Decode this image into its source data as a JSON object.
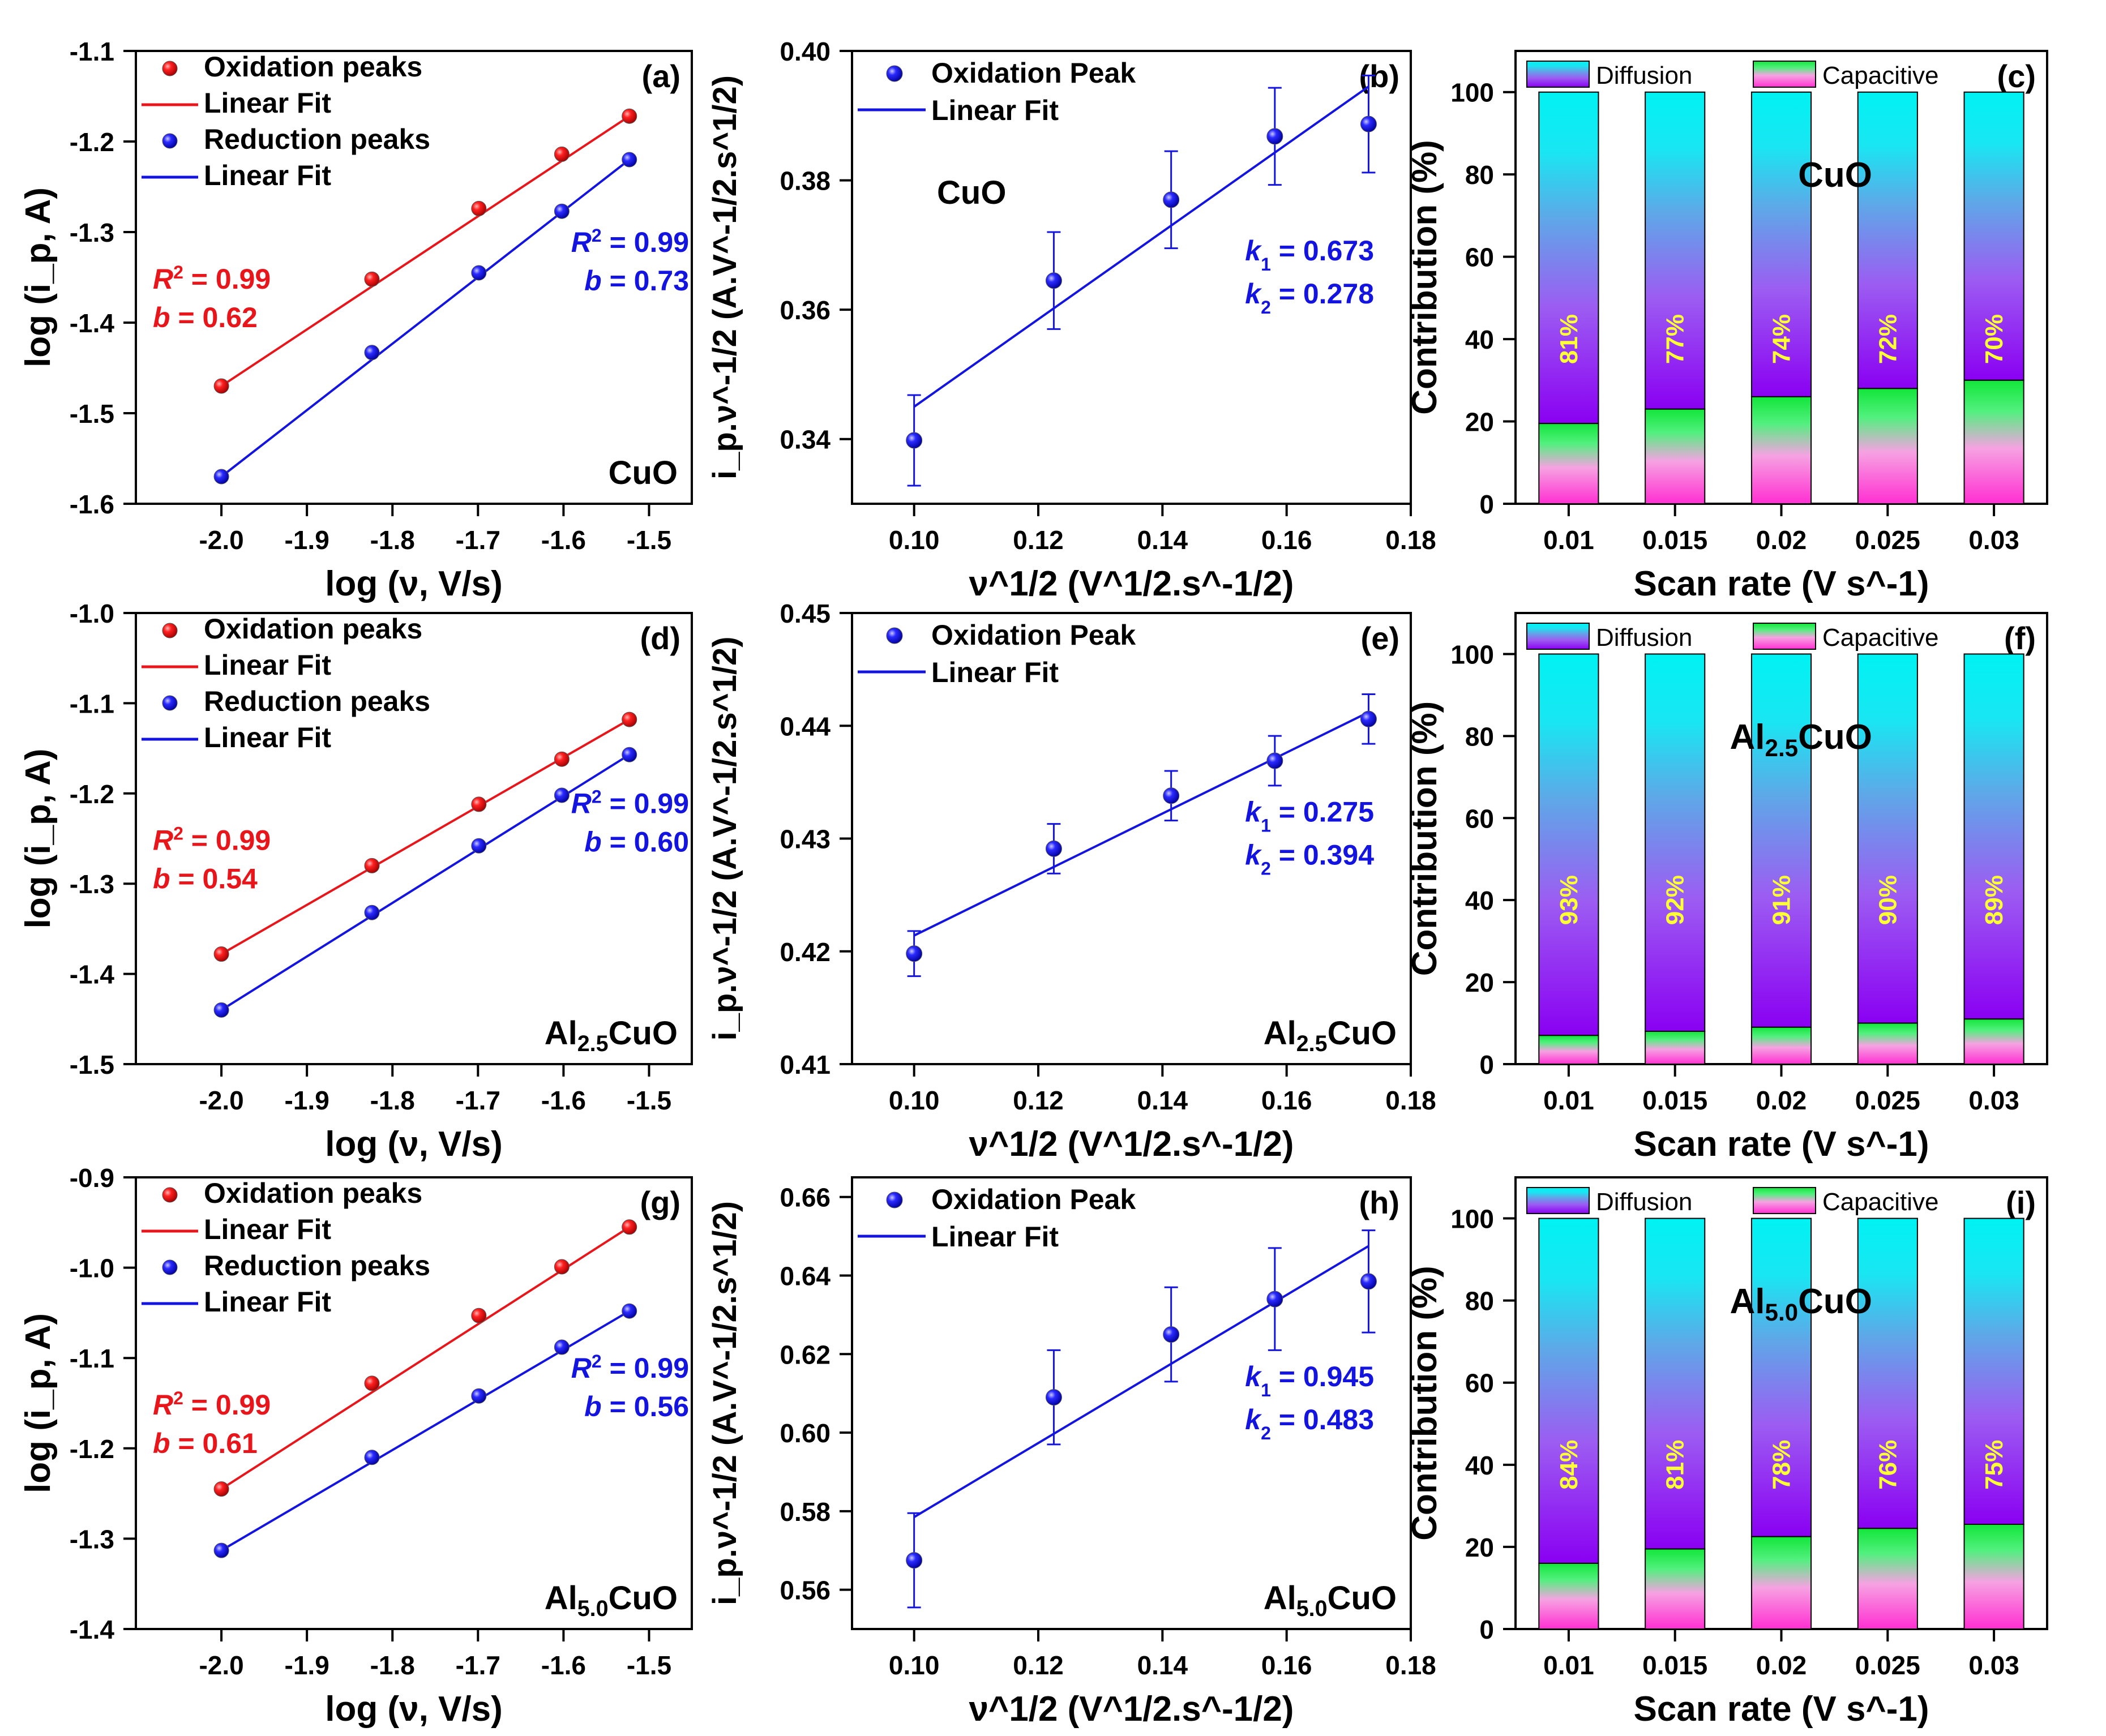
{
  "figure": {
    "rows": [
      {
        "material_main": "CuO",
        "material_sub": "",
        "material_tail": ""
      },
      {
        "material_main": "Al",
        "material_sub": "2.5",
        "material_tail": "CuO"
      },
      {
        "material_main": "Al",
        "material_sub": "5.0",
        "material_tail": "CuO"
      }
    ]
  },
  "chart_data": [
    {
      "type": "scatter",
      "panel_label": "(a)",
      "material_main": "CuO",
      "material_sub": "",
      "material_tail": "",
      "xlabel": "log (ν, V/s)",
      "ylabel": "log (i_p, A)",
      "xlim": [
        -2.1,
        -1.45
      ],
      "ylim": [
        -1.6,
        -1.1
      ],
      "xticks": [
        "-2.0",
        "-1.9",
        "-1.8",
        "-1.7",
        "-1.6",
        "-1.5"
      ],
      "xtick_values": [
        -2.0,
        -1.9,
        -1.8,
        -1.7,
        -1.6,
        -1.5
      ],
      "yticks": [
        "-1.6",
        "-1.5",
        "-1.4",
        "-1.3",
        "-1.2",
        "-1.1"
      ],
      "ytick_values": [
        -1.6,
        -1.5,
        -1.4,
        -1.3,
        -1.2,
        -1.1
      ],
      "x": [
        -2.0,
        -1.824,
        -1.699,
        -1.602,
        -1.523
      ],
      "series": [
        {
          "name": "Oxidation peaks",
          "fit_name": "Linear Fit",
          "color": "#e8161b",
          "values": [
            -1.47,
            -1.352,
            -1.274,
            -1.214,
            -1.172
          ]
        },
        {
          "name": "Reduction peaks",
          "fit_name": "Linear Fit",
          "color": "#1414e0",
          "values": [
            -1.57,
            -1.433,
            -1.345,
            -1.277,
            -1.22
          ]
        }
      ],
      "fits": [
        {
          "r2_label": "R",
          "r2_value": " = 0.99",
          "b_label": "b",
          "b_value": " = 0.62",
          "color": "#e8161b"
        },
        {
          "r2_label": "R",
          "r2_value": " = 0.99",
          "b_label": "b",
          "b_value": " = 0.73",
          "color": "#1414e0"
        }
      ]
    },
    {
      "type": "scatter",
      "panel_label": "(b)",
      "material_main": "CuO",
      "material_sub": "",
      "material_tail": "",
      "xlabel": "ν^1/2 (V^1/2.s^-1/2)",
      "ylabel": "i_p.ν^-1/2 (A.V^-1/2.s^1/2)",
      "xlim": [
        0.09,
        0.18
      ],
      "ylim": [
        0.33,
        0.4
      ],
      "xticks": [
        "0.10",
        "0.12",
        "0.14",
        "0.16",
        "0.18"
      ],
      "xtick_values": [
        0.1,
        0.12,
        0.14,
        0.16,
        0.18
      ],
      "yticks": [
        "0.34",
        "0.36",
        "0.38",
        "0.40"
      ],
      "ytick_values": [
        0.34,
        0.36,
        0.38,
        0.4
      ],
      "x": [
        0.1,
        0.1225,
        0.1414,
        0.1581,
        0.1732
      ],
      "series": [
        {
          "name": "Oxidation Peak",
          "fit_name": "Linear Fit",
          "color": "#1414e0",
          "values": [
            0.3398,
            0.3645,
            0.377,
            0.3868,
            0.3887
          ],
          "errors": [
            0.007,
            0.0075,
            0.0075,
            0.0075,
            0.0075
          ],
          "fit_line": [
            0.345,
            0.3945
          ]
        }
      ],
      "k1": "0.673",
      "k2": "0.278"
    },
    {
      "type": "bar",
      "panel_label": "(c)",
      "material_main": "CuO",
      "material_sub": "",
      "material_tail": "",
      "xlabel": "Scan rate (V s^-1)",
      "ylabel": "Contribution (%)",
      "ylim": [
        0,
        110
      ],
      "yticks": [
        "0",
        "20",
        "40",
        "60",
        "80",
        "100"
      ],
      "ytick_values": [
        0,
        20,
        40,
        60,
        80,
        100
      ],
      "categories": [
        "0.01",
        "0.015",
        "0.02",
        "0.025",
        "0.03"
      ],
      "series": [
        {
          "name": "Capacitive",
          "values": [
            19.5,
            23,
            26,
            28,
            30
          ]
        },
        {
          "name": "Diffusion",
          "values": [
            80.5,
            77,
            74,
            72,
            70
          ]
        }
      ],
      "diffusion_labels": [
        "81%",
        "77%",
        "74%",
        "72%",
        "70%"
      ],
      "legend": [
        "Diffusion",
        "Capacitive"
      ]
    },
    {
      "type": "scatter",
      "panel_label": "(d)",
      "material_main": "Al",
      "material_sub": "2.5",
      "material_tail": "CuO",
      "xlabel": "log (ν, V/s)",
      "ylabel": "log (i_p, A)",
      "xlim": [
        -2.1,
        -1.45
      ],
      "ylim": [
        -1.5,
        -1.0
      ],
      "xticks": [
        "-2.0",
        "-1.9",
        "-1.8",
        "-1.7",
        "-1.6",
        "-1.5"
      ],
      "xtick_values": [
        -2.0,
        -1.9,
        -1.8,
        -1.7,
        -1.6,
        -1.5
      ],
      "yticks": [
        "-1.5",
        "-1.4",
        "-1.3",
        "-1.2",
        "-1.1",
        "-1.0"
      ],
      "ytick_values": [
        -1.5,
        -1.4,
        -1.3,
        -1.2,
        -1.1,
        -1.0
      ],
      "x": [
        -2.0,
        -1.824,
        -1.699,
        -1.602,
        -1.523
      ],
      "series": [
        {
          "name": "Oxidation peaks",
          "fit_name": "Linear Fit",
          "color": "#e8161b",
          "values": [
            -1.378,
            -1.28,
            -1.212,
            -1.162,
            -1.118
          ]
        },
        {
          "name": "Reduction peaks",
          "fit_name": "Linear Fit",
          "color": "#1414e0",
          "values": [
            -1.44,
            -1.332,
            -1.258,
            -1.202,
            -1.157
          ]
        }
      ],
      "fits": [
        {
          "r2_label": "R",
          "r2_value": " = 0.99",
          "b_label": "b",
          "b_value": " = 0.54",
          "color": "#e8161b"
        },
        {
          "r2_label": "R",
          "r2_value": " = 0.99",
          "b_label": "b",
          "b_value": " = 0.60",
          "color": "#1414e0"
        }
      ]
    },
    {
      "type": "scatter",
      "panel_label": "(e)",
      "material_main": "Al",
      "material_sub": "2.5",
      "material_tail": "CuO",
      "xlabel": "ν^1/2 (V^1/2.s^-1/2)",
      "ylabel": "i_p.ν^-1/2 (A.V^-1/2.s^1/2)",
      "xlim": [
        0.09,
        0.18
      ],
      "ylim": [
        0.41,
        0.45
      ],
      "xticks": [
        "0.10",
        "0.12",
        "0.14",
        "0.16",
        "0.18"
      ],
      "xtick_values": [
        0.1,
        0.12,
        0.14,
        0.16,
        0.18
      ],
      "yticks": [
        "0.41",
        "0.42",
        "0.43",
        "0.44",
        "0.45"
      ],
      "ytick_values": [
        0.41,
        0.42,
        0.43,
        0.44,
        0.45
      ],
      "x": [
        0.1,
        0.1225,
        0.1414,
        0.1581,
        0.1732
      ],
      "series": [
        {
          "name": "Oxidation Peak",
          "fit_name": "Linear Fit",
          "color": "#1414e0",
          "values": [
            0.4198,
            0.4291,
            0.4338,
            0.4369,
            0.4406
          ],
          "errors": [
            0.002,
            0.0022,
            0.0022,
            0.0022,
            0.0022
          ],
          "fit_line": [
            0.4214,
            0.4412
          ]
        }
      ],
      "k1": "0.275",
      "k2": "0.394"
    },
    {
      "type": "bar",
      "panel_label": "(f)",
      "material_main": "Al",
      "material_sub": "2.5",
      "material_tail": "CuO",
      "xlabel": "Scan rate (V s^-1)",
      "ylabel": "Contribution (%)",
      "ylim": [
        0,
        110
      ],
      "yticks": [
        "0",
        "20",
        "40",
        "60",
        "80",
        "100"
      ],
      "ytick_values": [
        0,
        20,
        40,
        60,
        80,
        100
      ],
      "categories": [
        "0.01",
        "0.015",
        "0.02",
        "0.025",
        "0.03"
      ],
      "series": [
        {
          "name": "Capacitive",
          "values": [
            7,
            8,
            9,
            10,
            11
          ]
        },
        {
          "name": "Diffusion",
          "values": [
            93,
            92,
            91,
            90,
            89
          ]
        }
      ],
      "diffusion_labels": [
        "93%",
        "92%",
        "91%",
        "90%",
        "89%"
      ],
      "legend": [
        "Diffusion",
        "Capacitive"
      ]
    },
    {
      "type": "scatter",
      "panel_label": "(g)",
      "material_main": "Al",
      "material_sub": "5.0",
      "material_tail": "CuO",
      "xlabel": "log (ν, V/s)",
      "ylabel": "log (i_p, A)",
      "xlim": [
        -2.1,
        -1.45
      ],
      "ylim": [
        -1.4,
        -0.9
      ],
      "xticks": [
        "-2.0",
        "-1.9",
        "-1.8",
        "-1.7",
        "-1.6",
        "-1.5"
      ],
      "xtick_values": [
        -2.0,
        -1.9,
        -1.8,
        -1.7,
        -1.6,
        -1.5
      ],
      "yticks": [
        "-1.4",
        "-1.3",
        "-1.2",
        "-1.1",
        "-1.0",
        "-0.9"
      ],
      "ytick_values": [
        -1.4,
        -1.3,
        -1.2,
        -1.1,
        -1.0,
        -0.9
      ],
      "x": [
        -2.0,
        -1.824,
        -1.699,
        -1.602,
        -1.523
      ],
      "series": [
        {
          "name": "Oxidation peaks",
          "fit_name": "Linear Fit",
          "color": "#e8161b",
          "values": [
            -1.245,
            -1.128,
            -1.053,
            -0.999,
            -0.955
          ]
        },
        {
          "name": "Reduction peaks",
          "fit_name": "Linear Fit",
          "color": "#1414e0",
          "values": [
            -1.313,
            -1.21,
            -1.142,
            -1.088,
            -1.048
          ]
        }
      ],
      "fits": [
        {
          "r2_label": "R",
          "r2_value": " = 0.99",
          "b_label": "b",
          "b_value": " = 0.61",
          "color": "#e8161b"
        },
        {
          "r2_label": "R",
          "r2_value": " = 0.99",
          "b_label": "b",
          "b_value": " = 0.56",
          "color": "#1414e0"
        }
      ]
    },
    {
      "type": "scatter",
      "panel_label": "(h)",
      "material_main": "Al",
      "material_sub": "5.0",
      "material_tail": "CuO",
      "xlabel": "ν^1/2 (V^1/2.s^-1/2)",
      "ylabel": "i_p.ν^-1/2 (A.V^-1/2.s^1/2)",
      "xlim": [
        0.09,
        0.18
      ],
      "ylim": [
        0.55,
        0.665
      ],
      "xticks": [
        "0.10",
        "0.12",
        "0.14",
        "0.16",
        "0.18"
      ],
      "xtick_values": [
        0.1,
        0.12,
        0.14,
        0.16,
        0.18
      ],
      "yticks": [
        "0.56",
        "0.58",
        "0.60",
        "0.62",
        "0.64",
        "0.66"
      ],
      "ytick_values": [
        0.56,
        0.58,
        0.6,
        0.62,
        0.64,
        0.66
      ],
      "x": [
        0.1,
        0.1225,
        0.1414,
        0.1581,
        0.1732
      ],
      "series": [
        {
          "name": "Oxidation Peak",
          "fit_name": "Linear Fit",
          "color": "#1414e0",
          "values": [
            0.5675,
            0.609,
            0.625,
            0.634,
            0.6385
          ],
          "errors": [
            0.012,
            0.012,
            0.012,
            0.013,
            0.013
          ],
          "fit_line": [
            0.5785,
            0.6475
          ]
        }
      ],
      "k1": "0.945",
      "k2": "0.483"
    },
    {
      "type": "bar",
      "panel_label": "(i)",
      "material_main": "Al",
      "material_sub": "5.0",
      "material_tail": "CuO",
      "xlabel": "Scan rate (V s^-1)",
      "ylabel": "Contribution (%)",
      "ylim": [
        0,
        110
      ],
      "yticks": [
        "0",
        "20",
        "40",
        "60",
        "80",
        "100"
      ],
      "ytick_values": [
        0,
        20,
        40,
        60,
        80,
        100
      ],
      "categories": [
        "0.01",
        "0.015",
        "0.02",
        "0.025",
        "0.03"
      ],
      "series": [
        {
          "name": "Capacitive",
          "values": [
            16,
            19.5,
            22.5,
            24.5,
            25.5
          ]
        },
        {
          "name": "Diffusion",
          "values": [
            84,
            80.5,
            77.5,
            75.5,
            74.5
          ]
        }
      ],
      "diffusion_labels": [
        "84%",
        "81%",
        "78%",
        "76%",
        "75%"
      ],
      "legend": [
        "Diffusion",
        "Capacitive"
      ]
    }
  ]
}
